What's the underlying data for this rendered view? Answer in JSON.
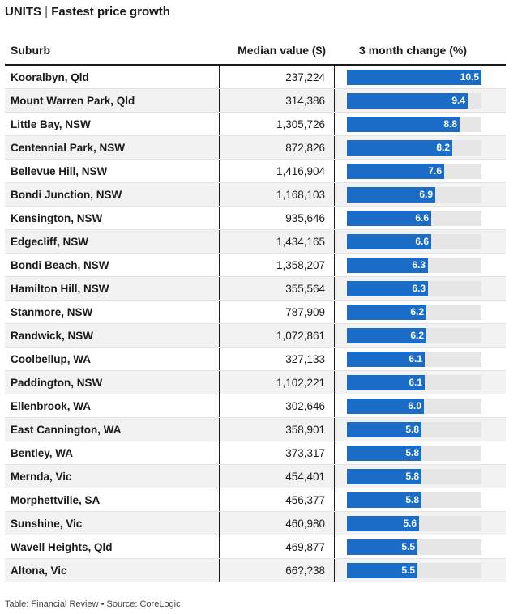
{
  "header": {
    "title_bold": "UNITS",
    "title_sep": "|",
    "title_rest": "Fastest price growth"
  },
  "table": {
    "col_suburb": "Suburb",
    "col_median": "Median value ($)",
    "col_change": "3 month change (%)"
  },
  "colors": {
    "bar": "#1a6cc7",
    "track": "#e6e6e6"
  },
  "chart_data": {
    "type": "table",
    "columns": [
      "Suburb",
      "Median value ($)",
      "3 month change (%)"
    ],
    "max_change": 10.5,
    "rows": [
      {
        "suburb": "Kooralbyn, Qld",
        "median": "237,224",
        "change": 10.5
      },
      {
        "suburb": "Mount Warren Park, Qld",
        "median": "314,386",
        "change": 9.4
      },
      {
        "suburb": "Little Bay, NSW",
        "median": "1,305,726",
        "change": 8.8
      },
      {
        "suburb": "Centennial Park, NSW",
        "median": "872,826",
        "change": 8.2
      },
      {
        "suburb": "Bellevue Hill, NSW",
        "median": "1,416,904",
        "change": 7.6
      },
      {
        "suburb": "Bondi Junction, NSW",
        "median": "1,168,103",
        "change": 6.9
      },
      {
        "suburb": "Kensington, NSW",
        "median": "935,646",
        "change": 6.6
      },
      {
        "suburb": "Edgecliff, NSW",
        "median": "1,434,165",
        "change": 6.6
      },
      {
        "suburb": "Bondi Beach, NSW",
        "median": "1,358,207",
        "change": 6.3
      },
      {
        "suburb": "Hamilton Hill, NSW",
        "median": "355,564",
        "change": 6.3
      },
      {
        "suburb": "Stanmore, NSW",
        "median": "787,909",
        "change": 6.2
      },
      {
        "suburb": "Randwick, NSW",
        "median": "1,072,861",
        "change": 6.2
      },
      {
        "suburb": "Coolbellup, WA",
        "median": "327,133",
        "change": 6.1
      },
      {
        "suburb": "Paddington, NSW",
        "median": "1,102,221",
        "change": 6.1
      },
      {
        "suburb": "Ellenbrook, WA",
        "median": "302,646",
        "change": 6.0
      },
      {
        "suburb": "East Cannington, WA",
        "median": "358,901",
        "change": 5.8
      },
      {
        "suburb": "Bentley, WA",
        "median": "373,317",
        "change": 5.8
      },
      {
        "suburb": "Mernda, Vic",
        "median": "454,401",
        "change": 5.8
      },
      {
        "suburb": "Morphettville, SA",
        "median": "456,377",
        "change": 5.8
      },
      {
        "suburb": "Sunshine, Vic",
        "median": "460,980",
        "change": 5.6
      },
      {
        "suburb": "Wavell Heights, Qld",
        "median": "469,877",
        "change": 5.5
      },
      {
        "suburb": "Altona, Vic",
        "median": "66?,?38",
        "change": 5.5
      }
    ]
  },
  "footer": {
    "source": "Table: Financial Review • Source: CoreLogic"
  }
}
